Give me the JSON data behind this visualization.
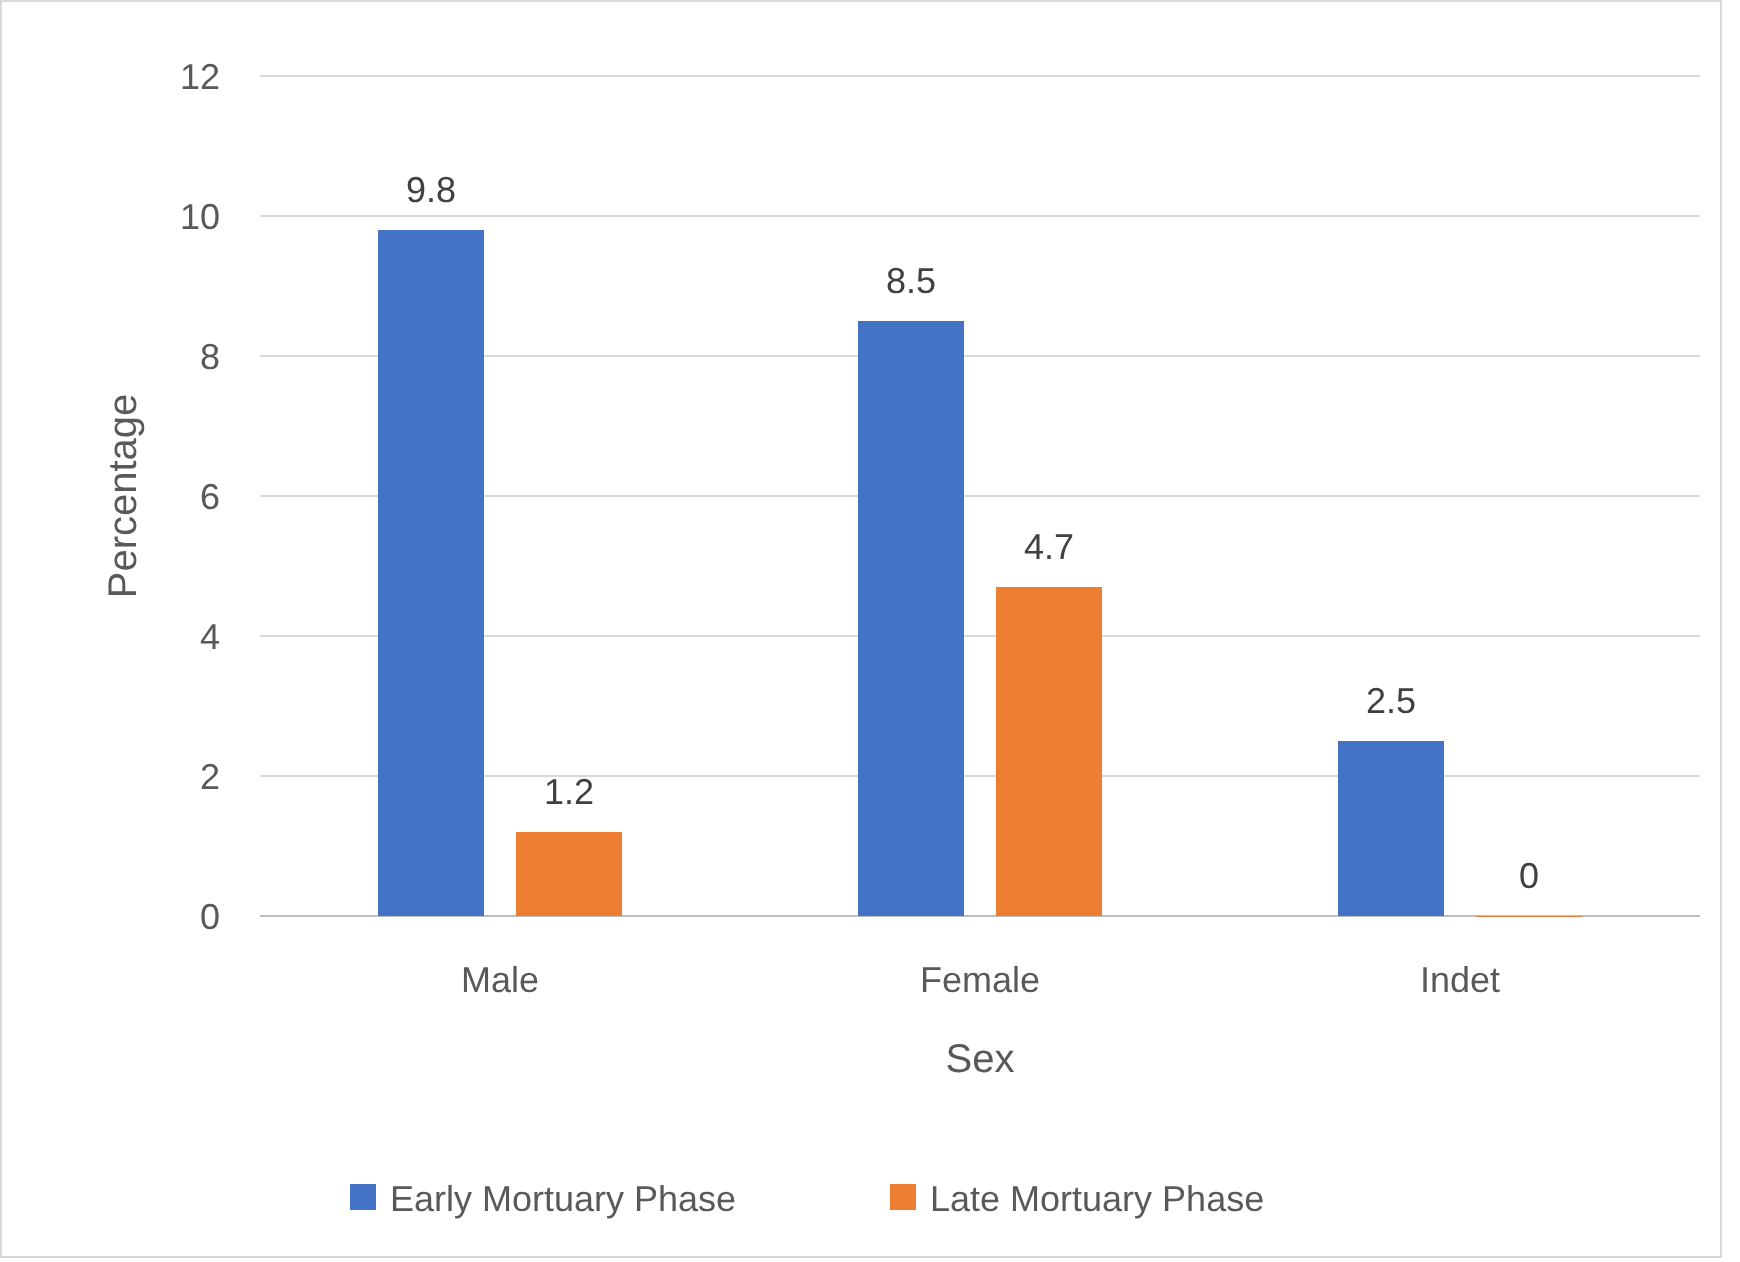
{
  "chart_data": {
    "type": "bar",
    "xlabel": "Sex",
    "ylabel": "Percentage",
    "categories": [
      "Male",
      "Female",
      "Indet"
    ],
    "series": [
      {
        "name": "Early Mortuary Phase",
        "color": "#4472c4",
        "values": [
          9.8,
          8.5,
          2.5
        ]
      },
      {
        "name": "Late Mortuary Phase",
        "color": "#ed7d31",
        "values": [
          1.2,
          4.7,
          0
        ]
      }
    ],
    "ylim": [
      0,
      12
    ],
    "yticks": [
      0,
      2,
      4,
      6,
      8,
      10,
      12
    ],
    "grid": "y",
    "data_labels": true,
    "legend": "bottom"
  }
}
